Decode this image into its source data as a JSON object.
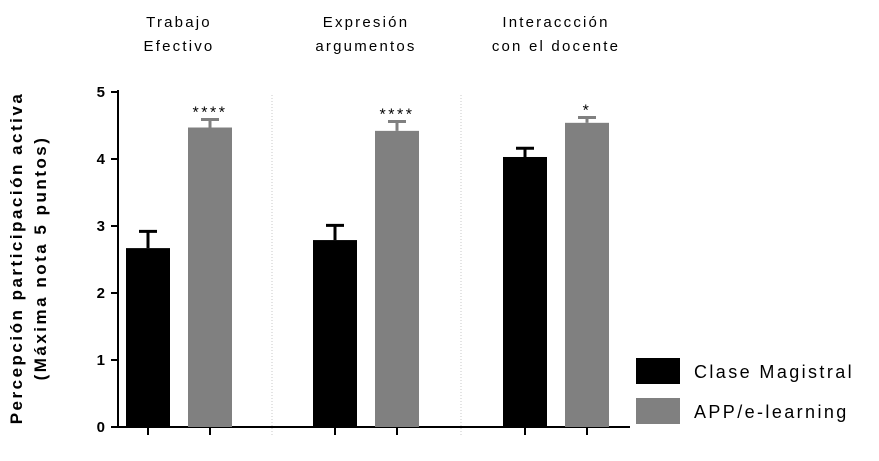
{
  "chart_data": {
    "type": "bar",
    "categories": [
      [
        "Trabajo",
        "Efectivo"
      ],
      [
        "Expresión",
        "argumentos"
      ],
      [
        "Interaccción",
        "con el docente"
      ]
    ],
    "ylabel": [
      "Percepción participación activa",
      "(Máxima nota 5 puntos)"
    ],
    "ylim": [
      0,
      5
    ],
    "yticks": [
      0,
      1,
      2,
      3,
      4,
      5
    ],
    "grid": false,
    "legend_position": "right",
    "series": [
      {
        "name": "Clase Magistral",
        "color": "#000000",
        "values": [
          2.67,
          2.79,
          4.03
        ],
        "errors": [
          0.25,
          0.22,
          0.13
        ]
      },
      {
        "name": "APP/e-learning",
        "color": "#808080",
        "values": [
          4.47,
          4.42,
          4.54
        ],
        "errors": [
          0.12,
          0.14,
          0.08
        ]
      }
    ],
    "significance": [
      "****",
      "****",
      "*"
    ]
  }
}
